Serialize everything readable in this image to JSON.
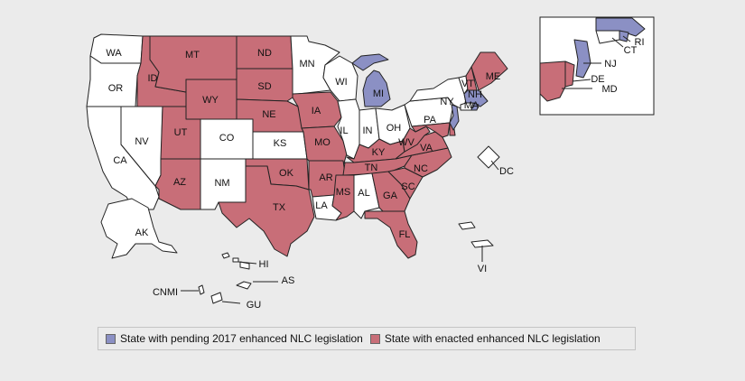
{
  "colors": {
    "pending": "#8b90c4",
    "enacted": "#c86e78",
    "none": "#ffffff",
    "background": "#ebebeb"
  },
  "legend": {
    "pending_label": "State with pending 2017 enhanced NLC legislation",
    "enacted_label": "State with enacted enhanced NLC legislation"
  },
  "states": {
    "WA": {
      "label": "WA",
      "status": "none"
    },
    "OR": {
      "label": "OR",
      "status": "none"
    },
    "CA": {
      "label": "CA",
      "status": "none"
    },
    "NV": {
      "label": "NV",
      "status": "none"
    },
    "ID": {
      "label": "ID",
      "status": "enacted"
    },
    "MT": {
      "label": "MT",
      "status": "enacted"
    },
    "WY": {
      "label": "WY",
      "status": "enacted"
    },
    "UT": {
      "label": "UT",
      "status": "enacted"
    },
    "AZ": {
      "label": "AZ",
      "status": "enacted"
    },
    "CO": {
      "label": "CO",
      "status": "none"
    },
    "NM": {
      "label": "NM",
      "status": "none"
    },
    "ND": {
      "label": "ND",
      "status": "enacted"
    },
    "SD": {
      "label": "SD",
      "status": "enacted"
    },
    "NE": {
      "label": "NE",
      "status": "enacted"
    },
    "KS": {
      "label": "KS",
      "status": "none"
    },
    "OK": {
      "label": "OK",
      "status": "enacted"
    },
    "TX": {
      "label": "TX",
      "status": "enacted"
    },
    "MN": {
      "label": "MN",
      "status": "none"
    },
    "IA": {
      "label": "IA",
      "status": "enacted"
    },
    "MO": {
      "label": "MO",
      "status": "enacted"
    },
    "AR": {
      "label": "AR",
      "status": "enacted"
    },
    "LA": {
      "label": "LA",
      "status": "none"
    },
    "WI": {
      "label": "WI",
      "status": "none"
    },
    "IL": {
      "label": "IL",
      "status": "none"
    },
    "MI": {
      "label": "MI",
      "status": "pending"
    },
    "IN": {
      "label": "IN",
      "status": "none"
    },
    "OH": {
      "label": "OH",
      "status": "none"
    },
    "KY": {
      "label": "KY",
      "status": "enacted"
    },
    "TN": {
      "label": "TN",
      "status": "enacted"
    },
    "MS": {
      "label": "MS",
      "status": "enacted"
    },
    "AL": {
      "label": "AL",
      "status": "none"
    },
    "GA": {
      "label": "GA",
      "status": "enacted"
    },
    "FL": {
      "label": "FL",
      "status": "enacted"
    },
    "SC": {
      "label": "SC",
      "status": "enacted"
    },
    "NC": {
      "label": "NC",
      "status": "enacted"
    },
    "VA": {
      "label": "VA",
      "status": "enacted"
    },
    "WV": {
      "label": "WV",
      "status": "enacted"
    },
    "PA": {
      "label": "PA",
      "status": "none"
    },
    "NY": {
      "label": "NY",
      "status": "none"
    },
    "VT": {
      "label": "VT",
      "status": "none"
    },
    "NH": {
      "label": "NH",
      "status": "enacted"
    },
    "ME": {
      "label": "ME",
      "status": "enacted"
    },
    "MA": {
      "label": "MA",
      "status": "pending"
    },
    "RI": {
      "label": "RI",
      "status": "pending"
    },
    "CT": {
      "label": "CT",
      "status": "none"
    },
    "NJ": {
      "label": "NJ",
      "status": "pending"
    },
    "DE": {
      "label": "DE",
      "status": "enacted"
    },
    "MD": {
      "label": "MD",
      "status": "enacted"
    },
    "DC": {
      "label": "DC",
      "status": "none"
    },
    "AK": {
      "label": "AK",
      "status": "none"
    },
    "HI": {
      "label": "HI",
      "status": "none"
    },
    "AS": {
      "label": "AS",
      "status": "none"
    },
    "CNMI": {
      "label": "CNMI",
      "status": "none"
    },
    "GU": {
      "label": "GU",
      "status": "none"
    },
    "VI": {
      "label": "VI",
      "status": "none"
    }
  }
}
